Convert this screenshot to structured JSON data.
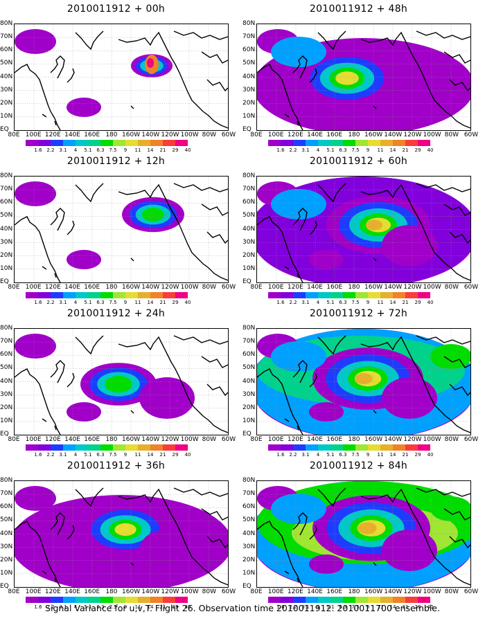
{
  "panels": [
    {
      "title": "2010011912 + 00h",
      "intensity": 0
    },
    {
      "title": "2010011912 + 48h",
      "intensity": 4
    },
    {
      "title": "2010011912 + 12h",
      "intensity": 1
    },
    {
      "title": "2010011912 + 60h",
      "intensity": 5
    },
    {
      "title": "2010011912 + 24h",
      "intensity": 2
    },
    {
      "title": "2010011912 + 72h",
      "intensity": 6
    },
    {
      "title": "2010011912 + 36h",
      "intensity": 3
    },
    {
      "title": "2010011912 + 84h",
      "intensity": 7
    }
  ],
  "lat_labels": [
    "80N",
    "70N",
    "60N",
    "50N",
    "40N",
    "30N",
    "20N",
    "10N",
    "EQ"
  ],
  "lon_labels": [
    "80E",
    "100E",
    "120E",
    "140E",
    "160E",
    "180",
    "160W",
    "140W",
    "120W",
    "100W",
    "80W",
    "60W"
  ],
  "colorbar": {
    "colors": [
      "#a000c8",
      "#8200dc",
      "#1e3cff",
      "#00a0ff",
      "#00c8c8",
      "#00d28c",
      "#00dc00",
      "#a0e632",
      "#e6dc32",
      "#e6af2d",
      "#f08228",
      "#fa3c3c",
      "#f00082"
    ],
    "labels": [
      "1.6",
      "2.2",
      "3.1",
      "4",
      "5.1",
      "6.3",
      "7.5",
      "9",
      "11",
      "14",
      "21",
      "29",
      "40"
    ]
  },
  "footer": "Signal Variance for u,v,T. Flight 26. Observation time 2010011912. 2010011700 ensemble."
}
